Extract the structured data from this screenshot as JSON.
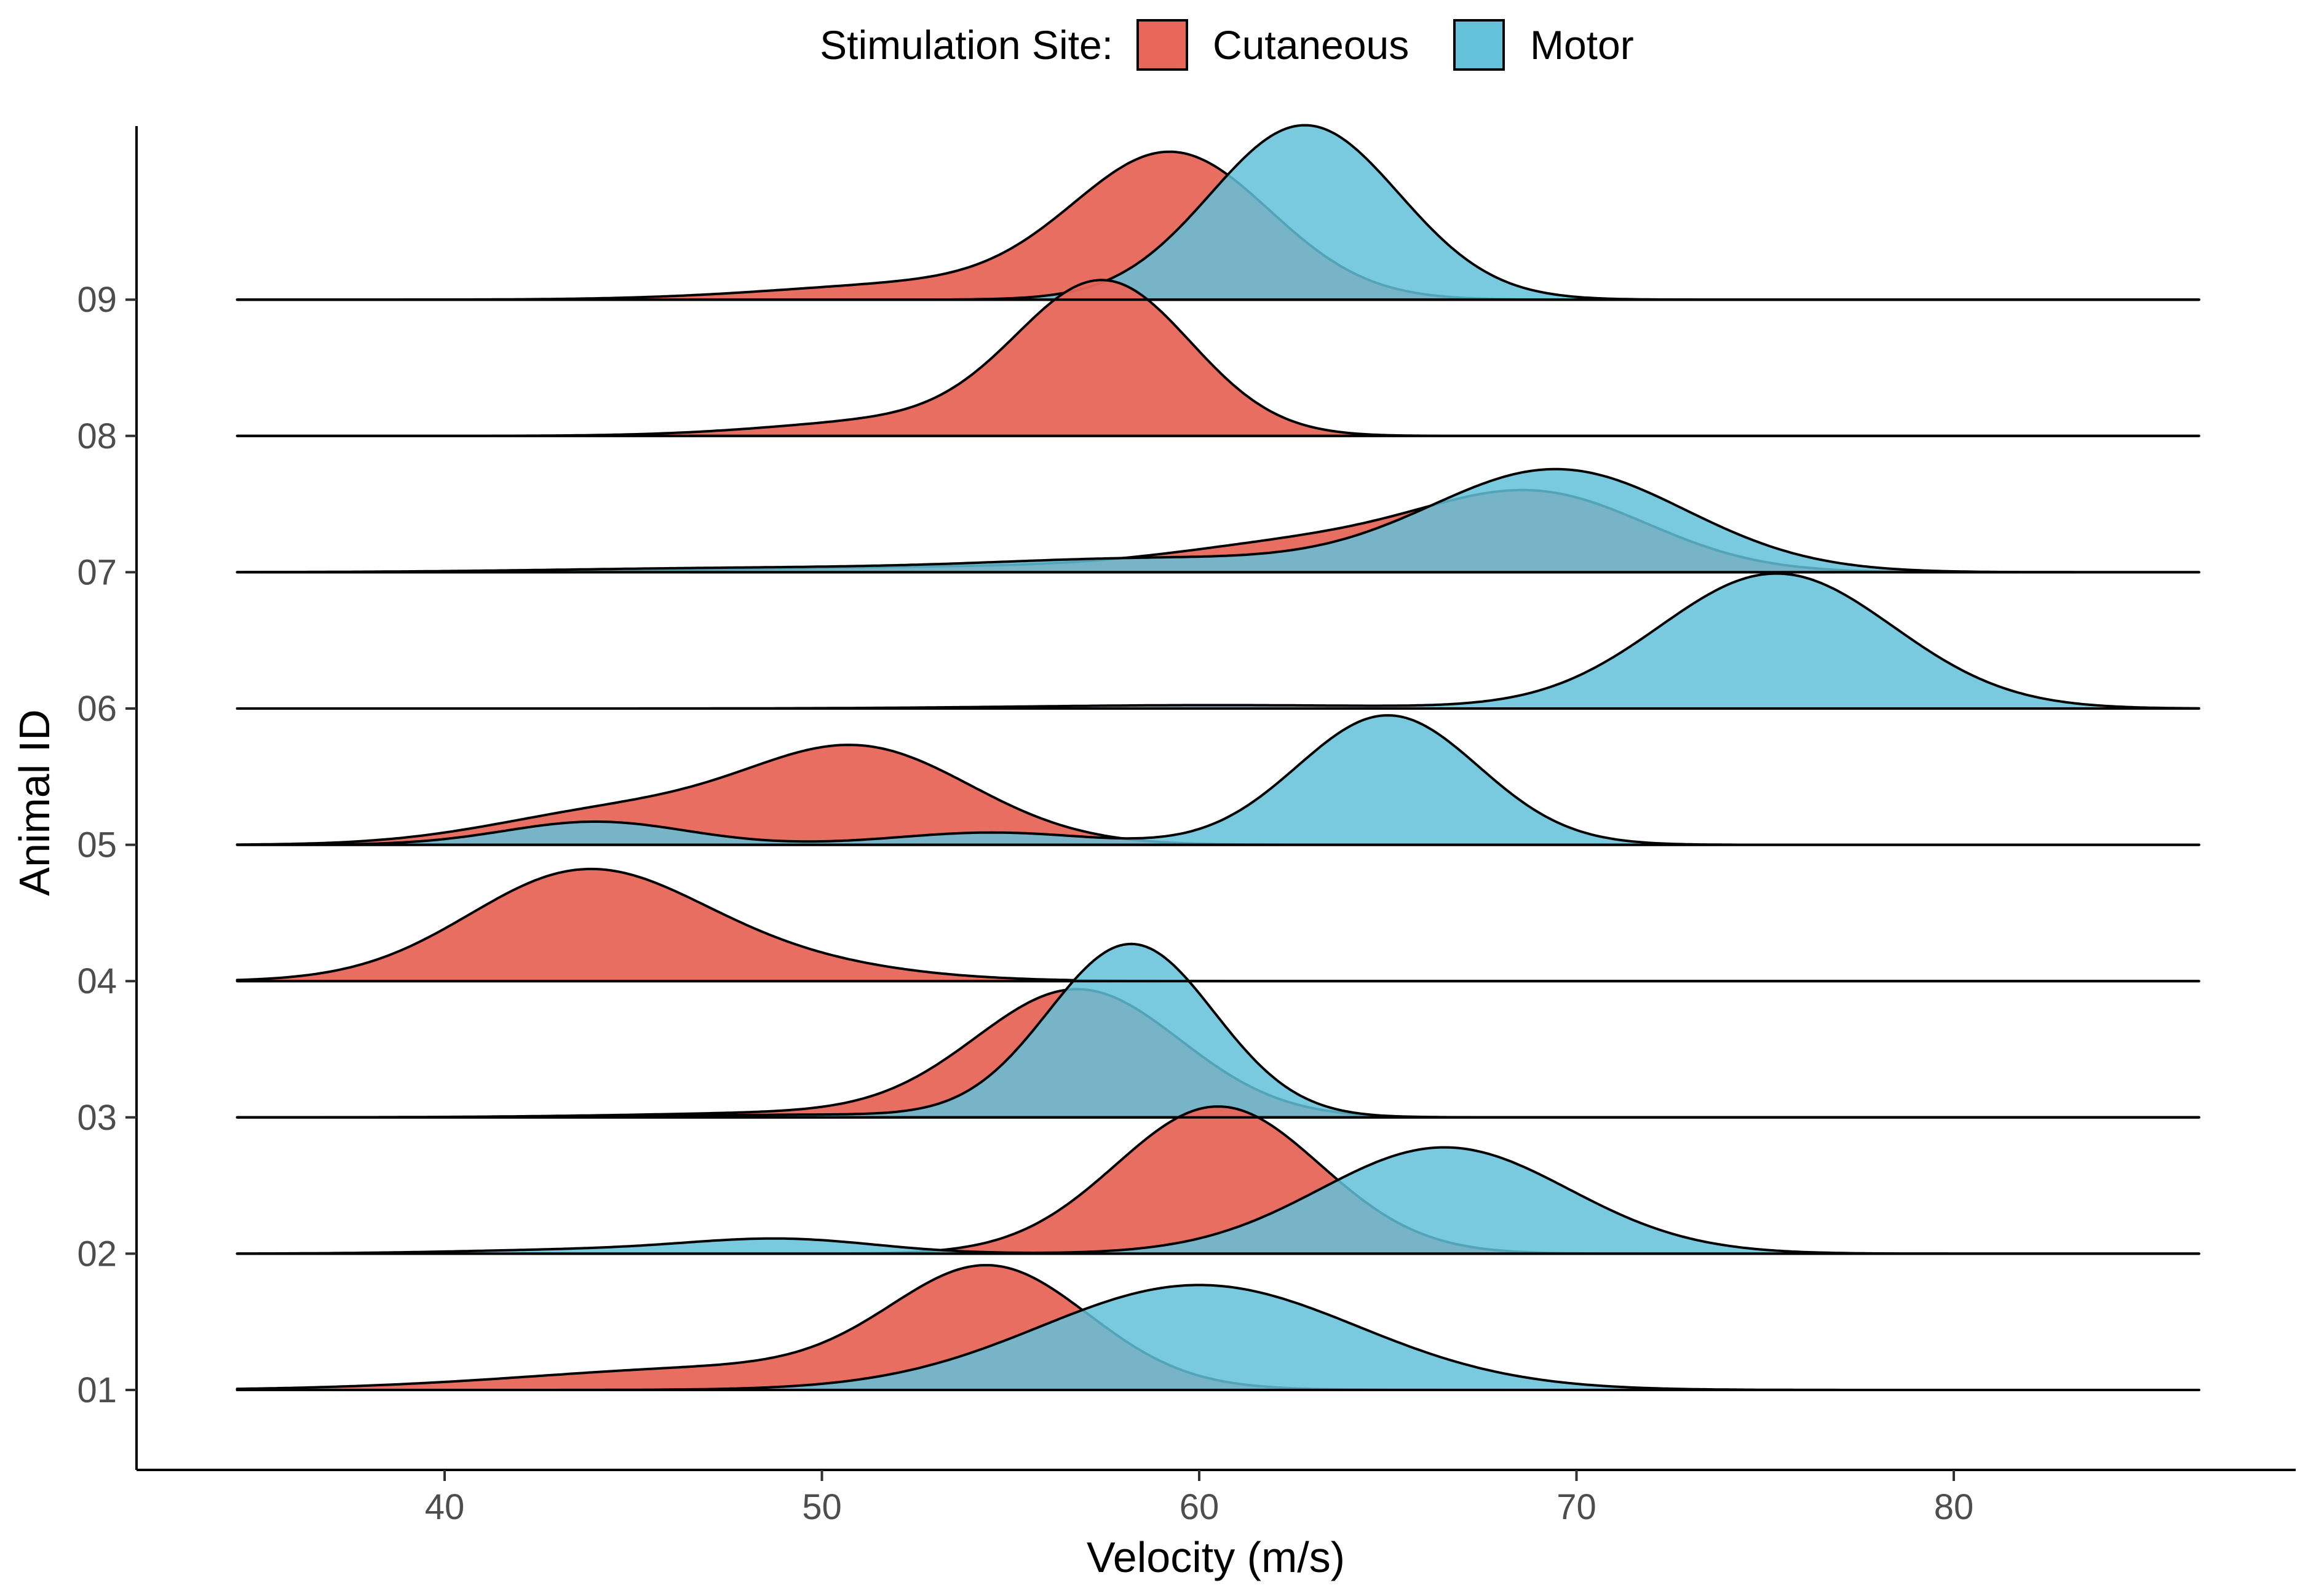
{
  "chart_data": {
    "type": "ridgeline",
    "xlabel": "Velocity (m/s)",
    "ylabel": "Animal ID",
    "xlim": [
      32,
      89
    ],
    "x_ticks": [
      40,
      50,
      60,
      70,
      80
    ],
    "categories": [
      "01",
      "02",
      "03",
      "04",
      "05",
      "06",
      "07",
      "08",
      "09"
    ],
    "legend": {
      "title": "Stimulation Site:",
      "placement": "top",
      "entries": [
        {
          "name": "Cutaneous",
          "color": "#e8665a"
        },
        {
          "name": "Motor",
          "color": "#63c1d9"
        }
      ]
    },
    "overlap_color": "#74a6b7",
    "series": [
      {
        "name": "Cutaneous",
        "color": "#e8665a",
        "ridges": [
          {
            "id": "01",
            "peak_x": 54.5,
            "peak_height": 1.0
          },
          {
            "id": "02",
            "peak_x": 60.5,
            "peak_height": 1.08
          },
          {
            "id": "03",
            "peak_x": 56.8,
            "peak_height": 0.95
          },
          {
            "id": "04",
            "peak_x": 43.5,
            "peak_height": 0.77
          },
          {
            "id": "05",
            "peak_x": 51.0,
            "peak_height": 0.79
          },
          {
            "id": "07",
            "peak_x": 69.0,
            "peak_height": 0.72
          },
          {
            "id": "08",
            "peak_x": 57.5,
            "peak_height": 1.26
          },
          {
            "id": "09",
            "peak_x": 59.3,
            "peak_height": 1.15
          }
        ]
      },
      {
        "name": "Motor",
        "color": "#63c1d9",
        "ridges": [
          {
            "id": "01",
            "peak_x": 60.0,
            "peak_height": 0.77
          },
          {
            "id": "02",
            "peak_x": 66.5,
            "peak_height": 0.78
          },
          {
            "id": "03",
            "peak_x": 58.2,
            "peak_height": 1.27
          },
          {
            "id": "05",
            "peak_x": 65.0,
            "peak_height": 0.95
          },
          {
            "id": "06",
            "peak_x": 75.3,
            "peak_height": 0.99
          },
          {
            "id": "07",
            "peak_x": 69.5,
            "peak_height": 0.77
          },
          {
            "id": "09",
            "peak_x": 62.8,
            "peak_height": 1.28
          }
        ]
      }
    ]
  }
}
